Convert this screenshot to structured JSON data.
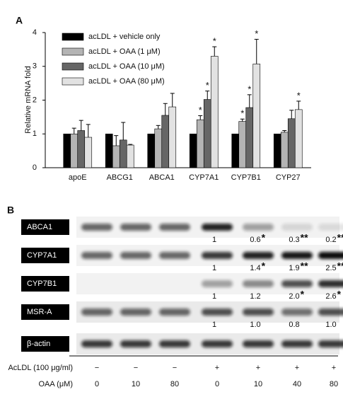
{
  "chart_data": {
    "type": "bar",
    "panel": "A",
    "ylabel": "Relative mRNA fold",
    "categories": [
      "apoE",
      "ABCG1",
      "ABCA1",
      "CYP7A1",
      "CYP7B1",
      "CYP27"
    ],
    "series": [
      {
        "name": "acLDL + vehicle only",
        "color": "#000000",
        "values": [
          1,
          1,
          1,
          1,
          1,
          1
        ],
        "errors": [
          0,
          0,
          0,
          0,
          0,
          0
        ],
        "labels": [
          null,
          null,
          null,
          null,
          null,
          null
        ]
      },
      {
        "name": "acLDL + OAA (1 μM)",
        "color": "#b4b4b4",
        "values": [
          1.0,
          0.65,
          1.15,
          1.42,
          1.37,
          1.05
        ],
        "errors": [
          0.17,
          0.3,
          0.1,
          0.12,
          0.07,
          0.05
        ],
        "labels": [
          null,
          null,
          null,
          "*",
          "*",
          null
        ]
      },
      {
        "name": "acLDL + OAA (10 μM)",
        "color": "#666666",
        "values": [
          1.1,
          0.82,
          1.55,
          2.02,
          1.78,
          1.45
        ],
        "errors": [
          0.3,
          0.52,
          0.35,
          0.25,
          0.38,
          0.25
        ],
        "labels": [
          null,
          null,
          null,
          "*",
          "*",
          null
        ]
      },
      {
        "name": "acLDL + OAA (80 μM)",
        "color": "#e2e2e2",
        "values": [
          0.9,
          0.67,
          1.8,
          3.3,
          3.07,
          1.72
        ],
        "errors": [
          0.38,
          0.02,
          0.4,
          0.28,
          0.73,
          0.25
        ],
        "labels": [
          null,
          null,
          null,
          "*",
          "*",
          "*"
        ]
      }
    ],
    "ylim": [
      0,
      4
    ],
    "yticks": [
      0,
      1,
      2,
      3,
      4
    ],
    "grid": false,
    "legend": "top-left"
  },
  "blot": {
    "panel": "B",
    "rows": [
      {
        "name": "ABCA1",
        "values": [
          "1",
          "0.6",
          "0.3",
          "0.2"
        ],
        "stars": [
          null,
          "*",
          "**",
          "**"
        ]
      },
      {
        "name": "CYP7A1",
        "values": [
          "1",
          "1.4",
          "1.9",
          "2.5"
        ],
        "stars": [
          null,
          "*",
          "**",
          "**"
        ]
      },
      {
        "name": "CYP7B1",
        "values": [
          "1",
          "1.2",
          "2.0",
          "2.6"
        ],
        "stars": [
          null,
          null,
          "*",
          "*"
        ]
      },
      {
        "name": "MSR-A",
        "values": [
          "1",
          "1.0",
          "0.8",
          "1.0"
        ],
        "stars": [
          null,
          null,
          null,
          null
        ]
      },
      {
        "name": "β-actin",
        "values": [],
        "stars": []
      }
    ],
    "conditions": [
      {
        "name": "AcLDL (100 μg/ml)",
        "values": [
          "−",
          "−",
          "−",
          "+",
          "+",
          "+",
          "+"
        ]
      },
      {
        "name": "OAA (μM)",
        "values": [
          "0",
          "10",
          "80",
          "0",
          "10",
          "40",
          "80"
        ]
      }
    ]
  }
}
